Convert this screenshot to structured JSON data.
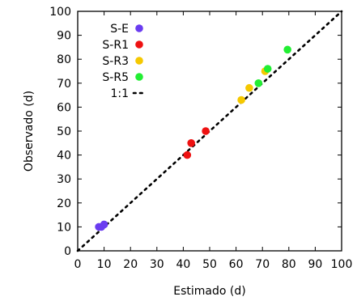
{
  "chart_data": {
    "type": "scatter",
    "title": "",
    "xlabel": "Estimado (d)",
    "ylabel": "Observado (d)",
    "xlim": [
      0,
      100
    ],
    "ylim": [
      0,
      100
    ],
    "xticks": [
      "0",
      "10",
      "20",
      "30",
      "40",
      "50",
      "60",
      "70",
      "80",
      "90",
      "100"
    ],
    "yticks": [
      "0",
      "10",
      "20",
      "30",
      "40",
      "50",
      "60",
      "70",
      "80",
      "90",
      "100"
    ],
    "grid": false,
    "legend_position": "top-left",
    "series": [
      {
        "name": "S-E",
        "color": "#6a3cf0",
        "points": [
          [
            8,
            10
          ],
          [
            9,
            10
          ],
          [
            10,
            11
          ]
        ]
      },
      {
        "name": "S-R1",
        "color": "#ee1111",
        "points": [
          [
            41.5,
            40
          ],
          [
            43,
            45
          ],
          [
            48.5,
            50
          ]
        ]
      },
      {
        "name": "S-R3",
        "color": "#f5c800",
        "points": [
          [
            62,
            63
          ],
          [
            65,
            68
          ],
          [
            71,
            75
          ]
        ]
      },
      {
        "name": "S-R5",
        "color": "#22ee33",
        "points": [
          [
            68.5,
            70
          ],
          [
            72,
            76
          ],
          [
            79.5,
            84
          ]
        ]
      }
    ],
    "reference_line": {
      "name": "1:1",
      "color": "#000000",
      "points": [
        [
          0,
          0
        ],
        [
          100,
          100
        ]
      ]
    }
  }
}
